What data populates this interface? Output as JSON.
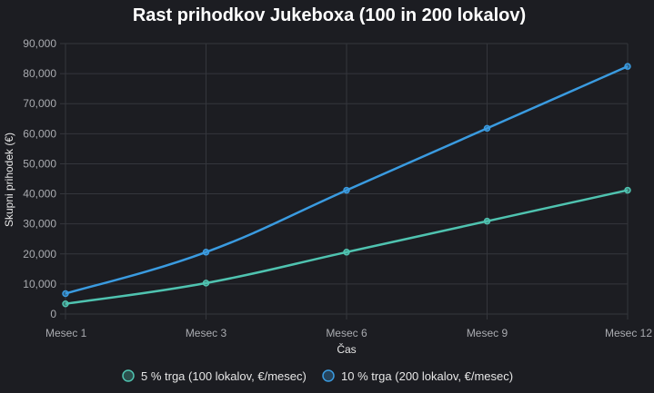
{
  "chart_data": {
    "type": "line",
    "title": "Rast prihodkov Jukeboxa (100 in 200 lokalov)",
    "xlabel": "Čas",
    "ylabel": "Skupni prihodek (€)",
    "categories": [
      "Mesec 1",
      "Mesec 3",
      "Mesec 6",
      "Mesec 9",
      "Mesec 12"
    ],
    "ylim": [
      0,
      90000
    ],
    "yticks": [
      0,
      10000,
      20000,
      30000,
      40000,
      50000,
      60000,
      70000,
      80000,
      90000
    ],
    "ytick_labels": [
      "0",
      "10,000",
      "20,000",
      "30,000",
      "40,000",
      "50,000",
      "60,000",
      "70,000",
      "80,000",
      "90,000"
    ],
    "grid": true,
    "legend_position": "bottom",
    "series": [
      {
        "name": "5 % trga (100 lokalov, €/mesec)",
        "values": [
          3400,
          10300,
          20600,
          30900,
          41200
        ],
        "color": "#4fc3b0"
      },
      {
        "name": "10 % trga (200 lokalov, €/mesec)",
        "values": [
          6800,
          20600,
          41200,
          61800,
          82400
        ],
        "color": "#3a9be0"
      }
    ]
  }
}
